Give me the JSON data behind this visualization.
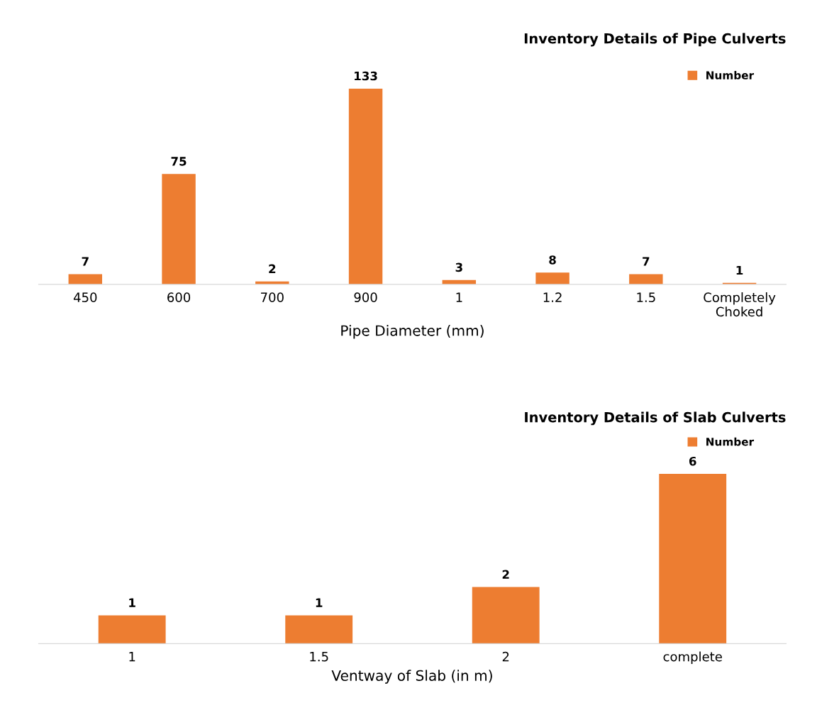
{
  "chart_data": [
    {
      "type": "bar",
      "title": "Inventory Details of Pipe Culverts",
      "xlabel": "Pipe Diameter (mm)",
      "categories": [
        "450",
        "600",
        "700",
        "900",
        "1",
        "1.2",
        "1.5",
        "Completely\nChoked"
      ],
      "series": [
        {
          "name": "Number",
          "color": "#ed7d31",
          "values": [
            7,
            75,
            2,
            133,
            3,
            8,
            7,
            1
          ]
        }
      ],
      "data_labels": true,
      "legend": "top right"
    },
    {
      "type": "bar",
      "title": "Inventory Details of Slab Culverts",
      "xlabel": "Ventway of Slab (in m)",
      "categories": [
        "1",
        "1.5",
        "2",
        "complete"
      ],
      "series": [
        {
          "name": "Number",
          "color": "#ed7d31",
          "values": [
            1,
            1,
            2,
            6
          ]
        }
      ],
      "data_labels": true,
      "legend": "top right"
    }
  ]
}
